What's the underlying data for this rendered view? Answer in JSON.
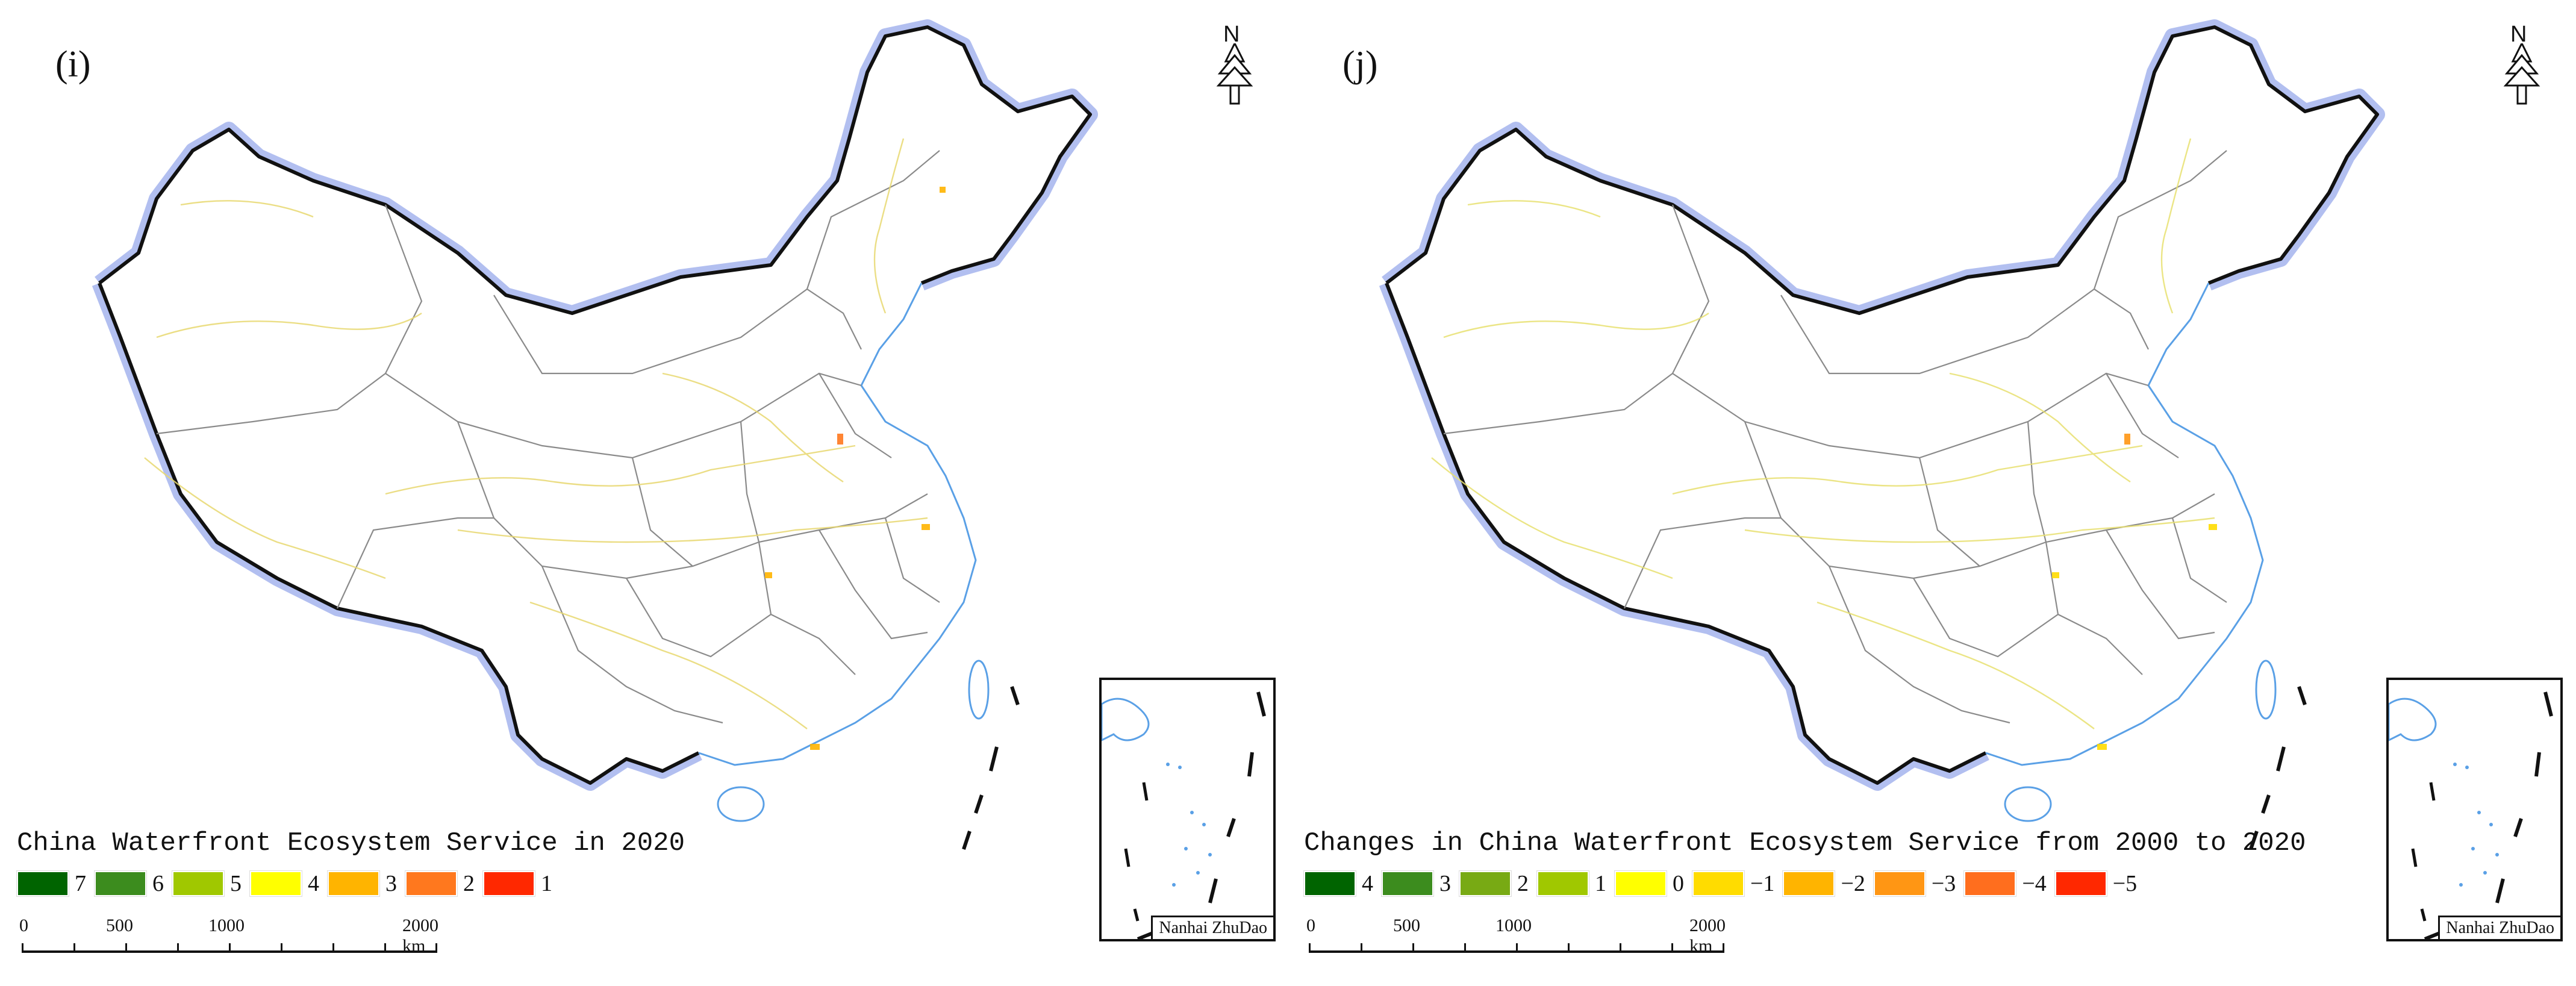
{
  "panels": [
    {
      "id": "i",
      "label": "(i)",
      "legend_title": "China Waterfront Ecosystem Service in 2020",
      "legend": [
        {
          "value": "7",
          "color": "#006400"
        },
        {
          "value": "6",
          "color": "#3c8c1e"
        },
        {
          "value": "5",
          "color": "#a0c800"
        },
        {
          "value": "4",
          "color": "#ffff00"
        },
        {
          "value": "3",
          "color": "#ffb400"
        },
        {
          "value": "2",
          "color": "#ff781e"
        },
        {
          "value": "1",
          "color": "#ff2800"
        }
      ],
      "north_label": "N",
      "inset_title": "Nanhai ZhuDao",
      "scale": {
        "labels": [
          "0",
          "500",
          "1000",
          "2000 km"
        ]
      }
    },
    {
      "id": "j",
      "label": "(j)",
      "legend_title": "Changes in China Waterfront Ecosystem Service from 2000 to 2020",
      "legend": [
        {
          "value": "4",
          "color": "#006400"
        },
        {
          "value": "3",
          "color": "#3c8c1e"
        },
        {
          "value": "2",
          "color": "#78aa14"
        },
        {
          "value": "1",
          "color": "#a0c800"
        },
        {
          "value": "0",
          "color": "#ffff00"
        },
        {
          "value": "−1",
          "color": "#ffdc00"
        },
        {
          "value": "−2",
          "color": "#ffb400"
        },
        {
          "value": "−3",
          "color": "#ff9614"
        },
        {
          "value": "−4",
          "color": "#ff6e1e"
        },
        {
          "value": "−5",
          "color": "#ff2800"
        }
      ],
      "north_label": "N",
      "inset_title": "Nanhai ZhuDao",
      "scale": {
        "labels": [
          "0",
          "500",
          "1000",
          "2000 km"
        ]
      }
    }
  ],
  "colors": {
    "border": "#111111",
    "border_halo": "#aab8ee",
    "province_lines": "#8a8a8a",
    "rivers": "#e8d870",
    "coast_water": "#5aa0e6"
  }
}
